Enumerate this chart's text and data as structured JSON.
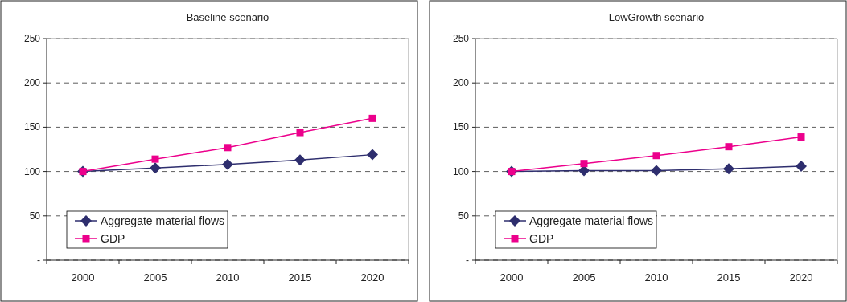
{
  "chart_data": [
    {
      "type": "line",
      "title": "Baseline scenario",
      "categories": [
        "2000",
        "2005",
        "2010",
        "2015",
        "2020"
      ],
      "series": [
        {
          "name": "Aggregate material flows",
          "color": "#2e2e6e",
          "marker": "diamond",
          "values": [
            100,
            104,
            108,
            113,
            119
          ]
        },
        {
          "name": "GDP",
          "color": "#ec008c",
          "marker": "square",
          "values": [
            100,
            114,
            127,
            144,
            160
          ]
        }
      ],
      "ylim": [
        0,
        250
      ],
      "yticks": [
        {
          "value": 0,
          "label": "-"
        },
        50,
        100,
        150,
        200,
        250
      ],
      "grid": "y",
      "legend": "bottom left"
    },
    {
      "type": "line",
      "title": "LowGrowth scenario",
      "categories": [
        "2000",
        "2005",
        "2010",
        "2015",
        "2020"
      ],
      "series": [
        {
          "name": "Aggregate material flows",
          "color": "#2e2e6e",
          "marker": "diamond",
          "values": [
            100,
            101,
            101,
            103,
            106
          ]
        },
        {
          "name": "GDP",
          "color": "#ec008c",
          "marker": "square",
          "values": [
            100,
            109,
            118,
            128,
            139
          ]
        }
      ],
      "ylim": [
        0,
        250
      ],
      "yticks": [
        {
          "value": 0,
          "label": "-"
        },
        50,
        100,
        150,
        200,
        250
      ],
      "grid": "y",
      "legend": "bottom left"
    }
  ]
}
